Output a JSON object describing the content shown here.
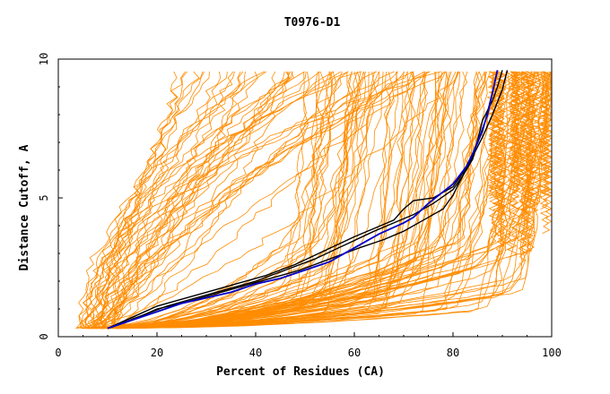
{
  "chart_data": {
    "type": "line",
    "title": "T0976-D1",
    "xlabel": "Percent of Residues (CA)",
    "ylabel": "Distance Cutoff, A",
    "xlim": [
      0,
      100
    ],
    "ylim": [
      0,
      10
    ],
    "x_ticks": [
      "0",
      "20",
      "40",
      "60",
      "80",
      "100"
    ],
    "y_ticks": [
      "0",
      "5",
      "10"
    ],
    "grid": false,
    "legend": "none",
    "colors": {
      "background_models": "#ff8c00",
      "highlight_blue": "#0000cc",
      "highlight_black": "#000000",
      "highlight_red": "#cc0000"
    },
    "series": [
      {
        "color": "#0000cc",
        "x": [
          10,
          15,
          20,
          25,
          30,
          35,
          40,
          45,
          50,
          55,
          60,
          65,
          70,
          72,
          75,
          80,
          83,
          85,
          87,
          88,
          89
        ],
        "y": [
          0.3,
          0.6,
          0.9,
          1.2,
          1.4,
          1.6,
          1.9,
          2.1,
          2.4,
          2.7,
          3.2,
          3.7,
          4.1,
          4.3,
          4.8,
          5.5,
          6.2,
          7.0,
          8.0,
          8.8,
          9.6
        ]
      },
      {
        "color": "#cc0000",
        "x": [
          10,
          15,
          20,
          25,
          30,
          35,
          40,
          45,
          50,
          55
        ],
        "y": [
          0.3,
          0.6,
          0.9,
          1.2,
          1.4,
          1.6,
          1.9,
          2.1,
          2.4,
          2.7
        ]
      },
      {
        "color": "#000000",
        "x": [
          10,
          15,
          20,
          24,
          30,
          36,
          42,
          48,
          54,
          60,
          64,
          68,
          70,
          72,
          76,
          80,
          82,
          84,
          86,
          87,
          88,
          89
        ],
        "y": [
          0.3,
          0.7,
          1.1,
          1.3,
          1.6,
          1.9,
          2.2,
          2.6,
          3.1,
          3.6,
          3.9,
          4.2,
          4.6,
          4.9,
          5.0,
          5.4,
          5.9,
          6.6,
          7.4,
          8.1,
          8.8,
          9.6
        ]
      },
      {
        "color": "#000000",
        "x": [
          10,
          15,
          20,
          25,
          31,
          37,
          43,
          49,
          55,
          61,
          66,
          70,
          74,
          78,
          80,
          82,
          84,
          86,
          88,
          90,
          91
        ],
        "y": [
          0.3,
          0.6,
          1.0,
          1.2,
          1.5,
          1.8,
          2.1,
          2.4,
          2.8,
          3.2,
          3.5,
          3.8,
          4.2,
          4.6,
          5.1,
          5.8,
          6.5,
          7.2,
          8.0,
          8.9,
          9.6
        ]
      },
      {
        "color": "#000000",
        "x": [
          10,
          16,
          22,
          28,
          34,
          40,
          46,
          52,
          58,
          64,
          68,
          72,
          76,
          80,
          82,
          84,
          85,
          86,
          88,
          89,
          90
        ],
        "y": [
          0.3,
          0.7,
          1.1,
          1.4,
          1.7,
          2.0,
          2.4,
          2.8,
          3.3,
          3.8,
          4.1,
          4.4,
          4.8,
          5.3,
          5.8,
          6.4,
          7.1,
          7.8,
          8.5,
          9.0,
          9.6
        ]
      }
    ]
  }
}
